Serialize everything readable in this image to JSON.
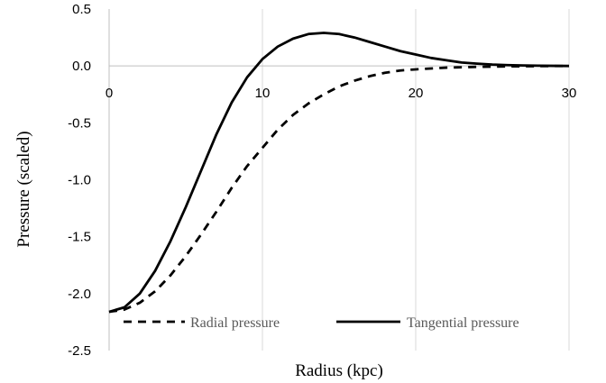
{
  "chart_data": {
    "type": "line",
    "xlabel": "Radius (kpc)",
    "ylabel": "Pressure (scaled)",
    "xlim": [
      0,
      30
    ],
    "ylim": [
      -2.5,
      0.5
    ],
    "x_ticks": [
      "0",
      "10",
      "20",
      "30"
    ],
    "y_ticks": [
      "0.5",
      "0.0",
      "-0.5",
      "-1.0",
      "-1.5",
      "-2.0",
      "-2.5"
    ],
    "x_gridlines": true,
    "y_gridlines": false,
    "legend": "bottom-right",
    "series": [
      {
        "name": "Radial pressure",
        "style": "dashed",
        "color": "#000000",
        "x": [
          0,
          1,
          2,
          3,
          4,
          5,
          6,
          7,
          8,
          9,
          10,
          11,
          12,
          13,
          14,
          15,
          16,
          17,
          18,
          19,
          20,
          22,
          24,
          26,
          28,
          30
        ],
        "y": [
          -2.16,
          -2.14,
          -2.08,
          -1.98,
          -1.84,
          -1.67,
          -1.48,
          -1.28,
          -1.07,
          -0.88,
          -0.72,
          -0.56,
          -0.43,
          -0.33,
          -0.25,
          -0.18,
          -0.13,
          -0.09,
          -0.06,
          -0.04,
          -0.03,
          -0.015,
          -0.008,
          -0.004,
          -0.002,
          0.0
        ]
      },
      {
        "name": "Tangential pressure",
        "style": "solid",
        "color": "#000000",
        "x": [
          0,
          1,
          2,
          3,
          4,
          5,
          6,
          7,
          8,
          9,
          10,
          11,
          12,
          13,
          14,
          15,
          16,
          17,
          18,
          19,
          20,
          21,
          22,
          23,
          24,
          25,
          26,
          27,
          28,
          29,
          30
        ],
        "y": [
          -2.16,
          -2.12,
          -2.0,
          -1.8,
          -1.54,
          -1.24,
          -0.92,
          -0.6,
          -0.32,
          -0.1,
          0.06,
          0.17,
          0.24,
          0.28,
          0.29,
          0.28,
          0.25,
          0.21,
          0.17,
          0.13,
          0.1,
          0.07,
          0.05,
          0.03,
          0.02,
          0.012,
          0.007,
          0.004,
          0.002,
          0.001,
          0.0
        ]
      }
    ]
  }
}
